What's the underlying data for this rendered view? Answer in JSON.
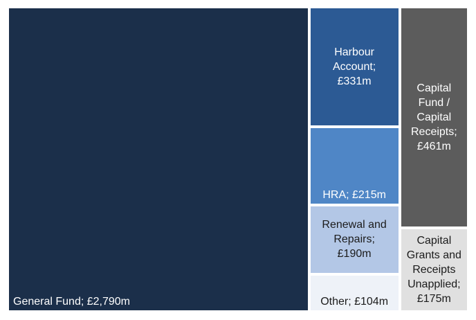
{
  "chart_data": {
    "type": "treemap",
    "title": "",
    "unit": "£m",
    "items": [
      {
        "name": "General Fund",
        "value": 2790,
        "label": "General Fund; £2,790m",
        "color": "#1b2f4a",
        "text_color": "#ffffff"
      },
      {
        "name": "Harbour Account",
        "value": 331,
        "label": "Harbour\nAccount;\n£331m",
        "color": "#2c5a94",
        "text_color": "#ffffff"
      },
      {
        "name": "HRA",
        "value": 215,
        "label": "HRA; £215m",
        "color": "#4f86c6",
        "text_color": "#ffffff"
      },
      {
        "name": "Renewal and Repairs",
        "value": 190,
        "label": "Renewal and\nRepairs;\n£190m",
        "color": "#b3c7e6",
        "text_color": "#1b1b1b"
      },
      {
        "name": "Other",
        "value": 104,
        "label": "Other; £104m",
        "color": "#eef2f8",
        "text_color": "#1b1b1b"
      },
      {
        "name": "Capital Fund / Capital Receipts",
        "value": 461,
        "label": "Capital\nFund /\nCapital\nReceipts;\n£461m",
        "color": "#5c5c5c",
        "text_color": "#ffffff"
      },
      {
        "name": "Capital Grants and Receipts Unapplied",
        "value": 175,
        "label": "Capital\nGrants and\nReceipts\nUnapplied;\n£175m",
        "color": "#e0e0e0",
        "text_color": "#1b1b1b"
      }
    ]
  }
}
